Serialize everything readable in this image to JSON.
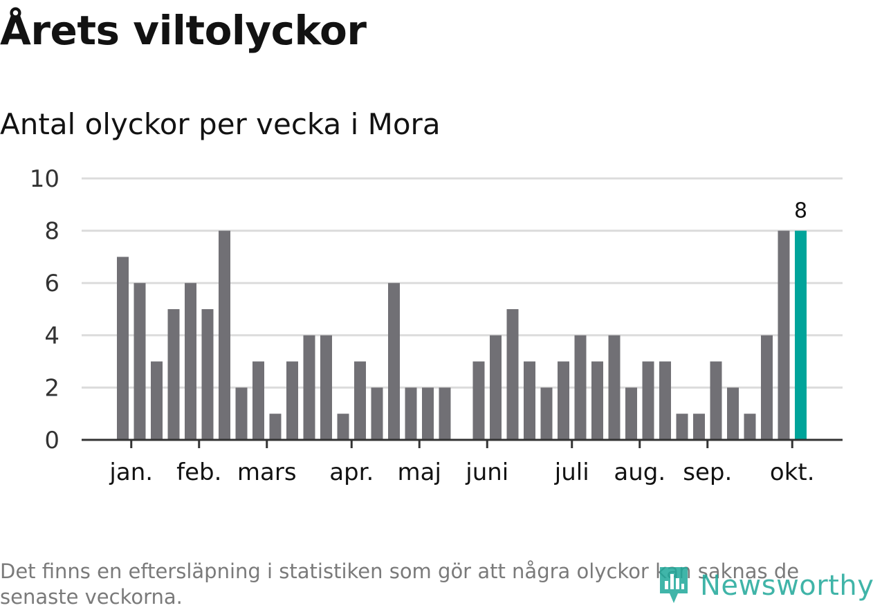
{
  "header": {
    "title": "Årets viltolyckor",
    "subtitle": "Antal olyckor per vecka i Mora"
  },
  "footer": {
    "note": "Det finns en eftersläpning i statistiken som gör att några olyckor kan saknas de senaste veckorna.",
    "brand": "Newsworthy"
  },
  "colors": {
    "bar": "#717075",
    "highlight": "#00a49a",
    "grid": "#dcdcdc",
    "axis": "#333333",
    "brand": "#1fa89a"
  },
  "chart_data": {
    "type": "bar",
    "ylim": [
      0,
      10
    ],
    "yticks": [
      0,
      2,
      4,
      6,
      8,
      10
    ],
    "grid": true,
    "xtick_labels": [
      {
        "label": "jan.",
        "index": 0.5
      },
      {
        "label": "feb.",
        "index": 4.5
      },
      {
        "label": "mars",
        "index": 8.5
      },
      {
        "label": "apr.",
        "index": 13.5
      },
      {
        "label": "maj",
        "index": 17.5
      },
      {
        "label": "juni",
        "index": 21.5
      },
      {
        "label": "juli",
        "index": 26.5
      },
      {
        "label": "aug.",
        "index": 30.5
      },
      {
        "label": "sep.",
        "index": 34.5
      },
      {
        "label": "okt.",
        "index": 39.5
      }
    ],
    "values": [
      7,
      6,
      3,
      5,
      6,
      5,
      8,
      2,
      3,
      1,
      3,
      4,
      4,
      1,
      3,
      2,
      6,
      2,
      2,
      2,
      0,
      3,
      4,
      5,
      3,
      2,
      3,
      4,
      3,
      4,
      2,
      3,
      3,
      1,
      1,
      3,
      2,
      1,
      4,
      8,
      8
    ],
    "highlight_index": 40,
    "highlight_label": "8"
  }
}
